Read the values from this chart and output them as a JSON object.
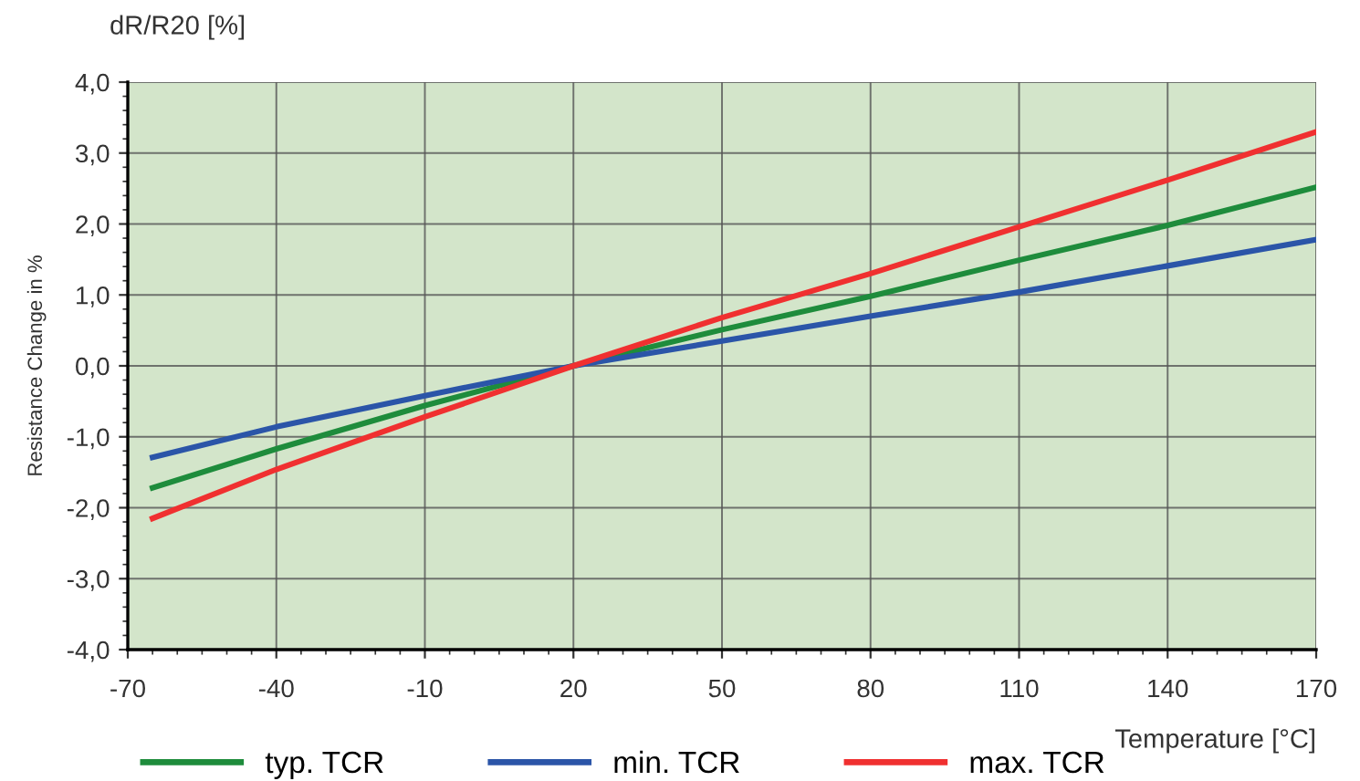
{
  "chart_data": {
    "type": "line",
    "title": "dR/R20 [%]",
    "xlabel": "Temperature [°C]",
    "ylabel": "Resistance Change in %",
    "x": [
      -65,
      -40,
      -10,
      20,
      50,
      80,
      110,
      140,
      170
    ],
    "series": [
      {
        "name": "typ. TCR",
        "color": "#1e8c3c",
        "values": [
          -1.72,
          -1.17,
          -0.56,
          0,
          0.51,
          0.98,
          1.49,
          1.98,
          2.52
        ]
      },
      {
        "name": "min. TCR",
        "color": "#2b55a8",
        "values": [
          -1.29,
          -0.86,
          -0.42,
          0,
          0.35,
          0.7,
          1.04,
          1.41,
          1.78
        ]
      },
      {
        "name": "max. TCR",
        "color": "#f03030",
        "values": [
          -2.15,
          -1.46,
          -0.72,
          0,
          0.68,
          1.3,
          1.96,
          2.62,
          3.3
        ]
      }
    ],
    "xlim": [
      -70,
      170
    ],
    "xticks": [
      -70,
      -40,
      -10,
      20,
      50,
      80,
      110,
      140,
      170
    ],
    "ylim": [
      -4,
      4
    ],
    "yticks": [
      {
        "value": -4,
        "label": "-4,0"
      },
      {
        "value": -3,
        "label": "-3,0"
      },
      {
        "value": -2,
        "label": "-2,0"
      },
      {
        "value": -1,
        "label": "-1,0"
      },
      {
        "value": 0,
        "label": "0,0"
      },
      {
        "value": 1,
        "label": "1,0"
      },
      {
        "value": 2,
        "label": "2,0"
      },
      {
        "value": 3,
        "label": "3,0"
      },
      {
        "value": 4,
        "label": "4,0"
      }
    ],
    "grid": true,
    "legend": "bottom left",
    "marker": "none",
    "line_style": "solid"
  }
}
